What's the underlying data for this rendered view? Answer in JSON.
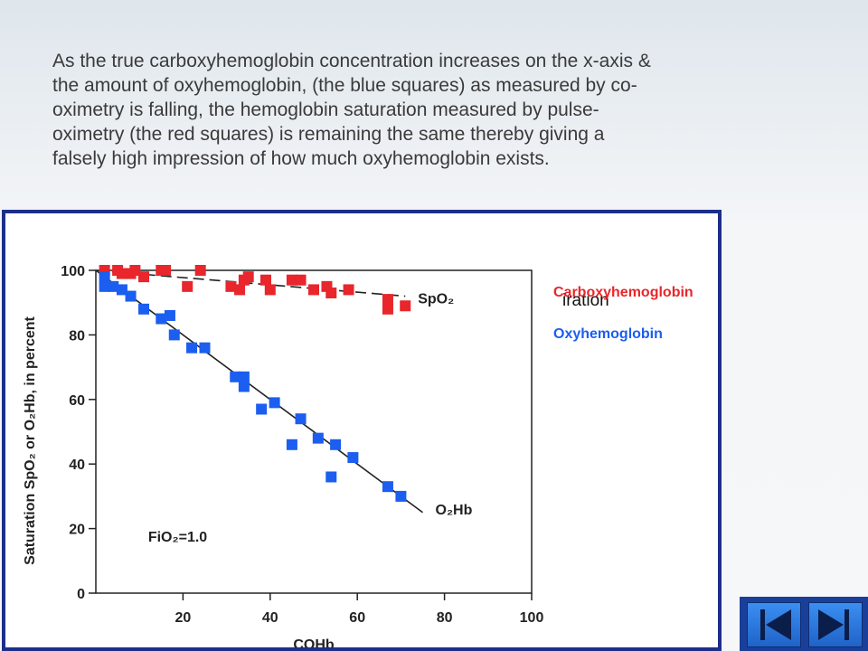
{
  "caption_lines": [
    "As the true carboxyhemoglobin concentration increases on the x-axis  &",
    "the amount of oxyhemoglobin, (the blue squares) as measured by co-",
    "oximetry is falling, the hemoglobin saturation  measured by pulse-",
    "oximetry (the red squares) is remaining the same thereby giving a",
    "falsely high impression of how much oxyhemoglobin exists."
  ],
  "chart_data": {
    "type": "scatter",
    "xlabel": "COHb",
    "ylabel": "Saturation SpO₂ or O₂Hb, in percent",
    "xlim": [
      0,
      100
    ],
    "ylim": [
      0,
      100
    ],
    "xticks": [
      "20",
      "40",
      "60",
      "80",
      "100"
    ],
    "yticks": [
      "0",
      "20",
      "40",
      "60",
      "80",
      "100"
    ],
    "grid": false,
    "annotation": "FiO₂=1.0",
    "series": [
      {
        "name": "SpO₂",
        "color": "#e8262b",
        "points": [
          [
            2,
            100
          ],
          [
            5,
            100
          ],
          [
            6,
            99
          ],
          [
            8,
            99
          ],
          [
            9,
            100
          ],
          [
            11,
            98
          ],
          [
            15,
            100
          ],
          [
            16,
            100
          ],
          [
            21,
            95
          ],
          [
            24,
            100
          ],
          [
            31,
            95
          ],
          [
            33,
            94
          ],
          [
            34,
            97
          ],
          [
            35,
            98
          ],
          [
            39,
            97
          ],
          [
            40,
            94
          ],
          [
            45,
            97
          ],
          [
            47,
            97
          ],
          [
            50,
            94
          ],
          [
            53,
            95
          ],
          [
            54,
            93
          ],
          [
            58,
            94
          ],
          [
            67,
            91
          ],
          [
            67,
            88
          ],
          [
            71,
            89
          ]
        ],
        "trend": [
          [
            0,
            100
          ],
          [
            71,
            92
          ]
        ]
      },
      {
        "name": "O₂Hb",
        "color": "#1b5ef0",
        "points": [
          [
            2,
            98
          ],
          [
            2,
            95
          ],
          [
            4,
            95
          ],
          [
            6,
            94
          ],
          [
            8,
            92
          ],
          [
            11,
            88
          ],
          [
            15,
            85
          ],
          [
            17,
            86
          ],
          [
            18,
            80
          ],
          [
            22,
            76
          ],
          [
            25,
            76
          ],
          [
            32,
            67
          ],
          [
            34,
            67
          ],
          [
            34,
            64
          ],
          [
            38,
            57
          ],
          [
            41,
            59
          ],
          [
            45,
            46
          ],
          [
            47,
            54
          ],
          [
            51,
            48
          ],
          [
            54,
            36
          ],
          [
            55,
            46
          ],
          [
            59,
            42
          ],
          [
            67,
            33
          ],
          [
            70,
            30
          ]
        ],
        "trend": [
          [
            0,
            100
          ],
          [
            75,
            25
          ]
        ]
      }
    ]
  },
  "legend": {
    "carboxy": "Carboxyhemoglobin",
    "carboxy_color": "#e8262b",
    "oxy": "Oxyhemoglobin",
    "oxy_color": "#1b5ef0",
    "overlap_text": "iration"
  },
  "nav": {
    "prev_icon": "triangle-left",
    "next_icon": "triangle-right",
    "bar_color": "#1a3f9a"
  }
}
